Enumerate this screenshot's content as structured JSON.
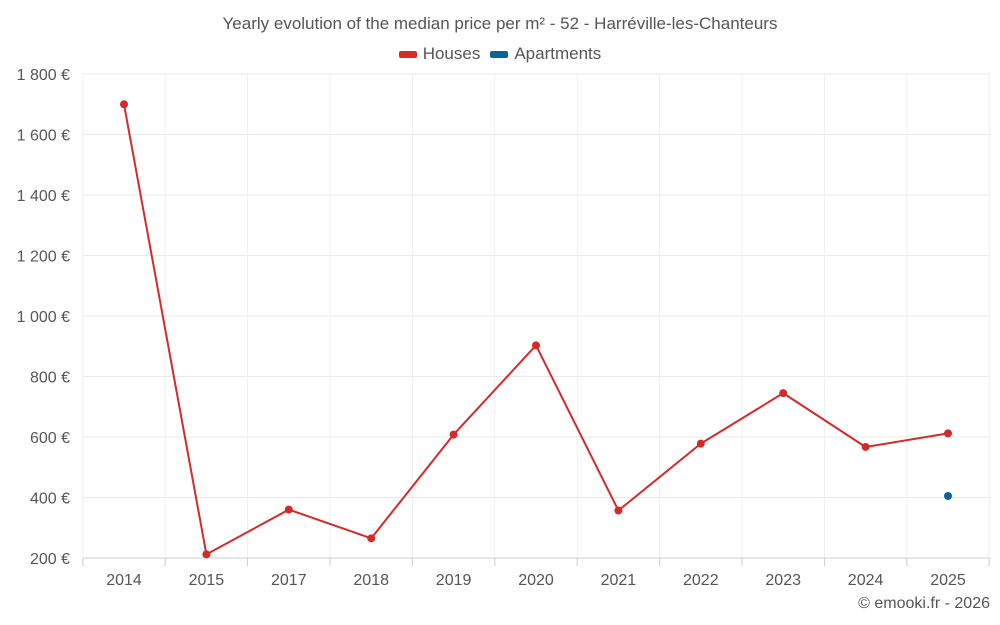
{
  "chart_data": {
    "type": "line",
    "title": "Yearly evolution of the median price per m² - 52 - Harréville-les-Chanteurs",
    "categories": [
      "2014",
      "2015",
      "2017",
      "2018",
      "2019",
      "2020",
      "2021",
      "2022",
      "2023",
      "2024",
      "2025"
    ],
    "series": [
      {
        "name": "Houses",
        "color": "#d42a2a",
        "values": [
          1700,
          212,
          360,
          265,
          608,
          903,
          357,
          578,
          745,
          567,
          612
        ]
      },
      {
        "name": "Apartments",
        "color": "#0a6496",
        "values": [
          null,
          null,
          null,
          null,
          null,
          null,
          null,
          null,
          null,
          null,
          405
        ]
      }
    ],
    "yticks": [
      "1 800 €",
      "1 600 €",
      "1 400 €",
      "1 200 €",
      "1 000 €",
      "800 €",
      "600 €",
      "400 €",
      "200 €"
    ],
    "ytick_values": [
      1800,
      1600,
      1400,
      1200,
      1000,
      800,
      600,
      400,
      200
    ],
    "ylim": [
      200,
      1800
    ],
    "xlabel": "",
    "ylabel": "",
    "grid": true,
    "legend_position": "top-center"
  },
  "credit": "© emooki.fr - 2026"
}
